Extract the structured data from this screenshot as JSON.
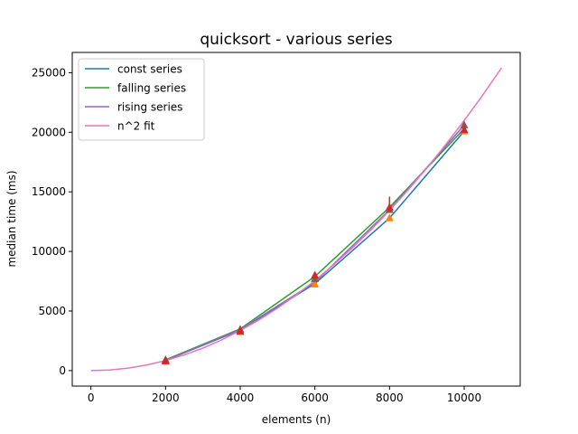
{
  "chart_data": {
    "type": "line",
    "title": "quicksort - various series",
    "xlabel": "elements (n)",
    "ylabel": "median time (ms)",
    "xlim": [
      -500,
      11500
    ],
    "ylim": [
      -1300,
      26700
    ],
    "xticks": [
      0,
      2000,
      4000,
      6000,
      8000,
      10000
    ],
    "yticks": [
      0,
      5000,
      10000,
      15000,
      20000,
      25000
    ],
    "x": [
      2000,
      4000,
      6000,
      8000,
      10000
    ],
    "grid": false,
    "legend_position": "top-left",
    "series": [
      {
        "name": "const series",
        "color": "#1f77b4",
        "values": [
          850,
          3400,
          7300,
          12800,
          20100
        ]
      },
      {
        "name": "falling series",
        "color": "#2ca02c",
        "values": [
          900,
          3500,
          7900,
          13700,
          20300
        ]
      },
      {
        "name": "rising series",
        "color": "#9467bd",
        "values": [
          850,
          3450,
          7400,
          13500,
          20600
        ]
      },
      {
        "name": "n^2 fit",
        "color": "#e377c2",
        "x": [
          0,
          500,
          1000,
          1500,
          2000,
          2500,
          3000,
          3500,
          4000,
          4500,
          5000,
          5500,
          6000,
          6500,
          7000,
          7500,
          8000,
          8500,
          9000,
          9500,
          10000,
          10500,
          11000
        ],
        "values": [
          0,
          52,
          210,
          472,
          840,
          1312,
          1889,
          2572,
          3359,
          4251,
          5248,
          6350,
          7557,
          8869,
          10286,
          11808,
          13435,
          15167,
          17004,
          18946,
          20992,
          23144,
          25400
        ]
      }
    ],
    "markers": [
      {
        "color": "#ff7f0e",
        "values": [
          800,
          3250,
          7250,
          12800,
          20100
        ]
      },
      {
        "color": "#8c564b",
        "values": [
          900,
          3450,
          7700,
          13500,
          20600
        ]
      },
      {
        "color": "#d62728",
        "values": [
          800,
          3300,
          8000,
          13700,
          20200
        ]
      }
    ],
    "error_bars": [
      {
        "color": "#d62728",
        "x": 8000,
        "low": 13400,
        "high": 14600
      }
    ]
  }
}
